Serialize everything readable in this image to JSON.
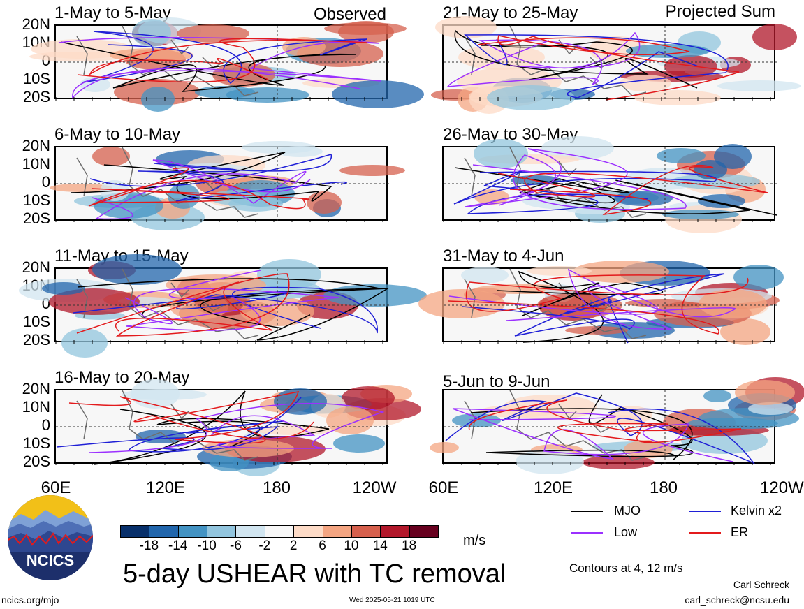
{
  "header": {
    "left_tag": "Observed",
    "right_tag": "Projected Sum"
  },
  "panels_left": [
    {
      "title": "1-May to 5-May"
    },
    {
      "title": "6-May to 10-May"
    },
    {
      "title": "11-May to 15-May"
    },
    {
      "title": "16-May to 20-May"
    }
  ],
  "panels_right": [
    {
      "title": "21-May to 25-May"
    },
    {
      "title": "26-May to 30-May"
    },
    {
      "title": "31-May to 4-Jun"
    },
    {
      "title": "5-Jun to 9-Jun"
    }
  ],
  "lat_ticks": [
    "20N",
    "10N",
    "0",
    "10S",
    "20S"
  ],
  "lon_ticks": [
    "60E",
    "120E",
    "180",
    "120W"
  ],
  "lon_ticks_right_last": "120W",
  "colorbar": {
    "colors": [
      "#08306b",
      "#2166ac",
      "#4393c3",
      "#92c5de",
      "#d1e5f0",
      "#f7f7f7",
      "#fddbc7",
      "#f4a582",
      "#d6604d",
      "#b2182b",
      "#67001f"
    ],
    "labels": [
      "-18",
      "-14",
      "-10",
      "-6",
      "-2",
      "2",
      "6",
      "10",
      "14",
      "18"
    ],
    "units": "m/s"
  },
  "contour_key": {
    "mjo": {
      "label": "MJO",
      "color": "#000000"
    },
    "kelvin": {
      "label": "Kelvin x2",
      "color": "#1f1fd6"
    },
    "low": {
      "label": "Low",
      "color": "#9b30ff"
    },
    "er": {
      "label": "ER",
      "color": "#e31a1c"
    },
    "note": "Contours at 4, 12 m/s"
  },
  "title": "5-day USHEAR with TC removal",
  "logo_text": "NCICS",
  "footer": {
    "url": "ncics.org/mjo",
    "timestamp": "Wed 2025-05-21 1019 UTC",
    "author": "Carl Schreck",
    "email": "carl_schreck@ncsu.edu"
  }
}
